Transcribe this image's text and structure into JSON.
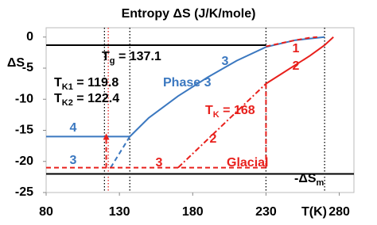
{
  "chart_data": {
    "type": "line",
    "title": "Entropy ΔS (J/K/mole)",
    "y_label": "ΔS",
    "x_label": "T(K)",
    "xlim": [
      80,
      290
    ],
    "ylim": [
      -25,
      1.5
    ],
    "xticks": [
      80,
      130,
      180,
      230,
      280
    ],
    "yticks": [
      -25,
      -20,
      -15,
      -10,
      -5,
      0
    ],
    "series": [
      {
        "name": "4",
        "color": "#3b78c0",
        "dash": "solid",
        "x": [
          80,
          137.1
        ],
        "values": [
          -16,
          -16
        ]
      },
      {
        "name": "3",
        "color": "#3b78c0",
        "dash": "dashed",
        "x": [
          124,
          137.1
        ],
        "values": [
          -21,
          -16
        ]
      },
      {
        "name": "3",
        "color": "#3b78c0",
        "dash": "solid",
        "x": [
          137.1,
          150,
          170,
          190,
          210,
          230,
          250,
          270
        ],
        "values": [
          -16,
          -13,
          -9.5,
          -6.5,
          -3.8,
          -1.6,
          -0.5,
          0
        ]
      },
      {
        "name": "3",
        "color": "#e8201c",
        "dash": "dashed",
        "x": [
          80,
          230
        ],
        "values": [
          -21,
          -21
        ]
      },
      {
        "color": "#e8201c",
        "dash": "dashed",
        "x": [
          230,
          230
        ],
        "values": [
          -21,
          -7.5
        ]
      },
      {
        "name": "2",
        "color": "#e8201c",
        "dash": "dashdot",
        "x": [
          170,
          230
        ],
        "values": [
          -21,
          -7.5
        ]
      },
      {
        "name": "2",
        "color": "#e8201c",
        "dash": "solid",
        "x": [
          230,
          240,
          250,
          260,
          270,
          276
        ],
        "values": [
          -7.5,
          -6,
          -4.5,
          -3,
          -1.3,
          0
        ]
      },
      {
        "name": "1",
        "color": "#e8201c",
        "dash": "dashed",
        "x": [
          230,
          240,
          250,
          260,
          265
        ],
        "values": [
          -1.5,
          -1,
          -0.5,
          -0.1,
          0
        ]
      },
      {
        "color": "#e8201c",
        "dash": "dashed",
        "arrow": true,
        "x": [
          121,
          121
        ],
        "values": [
          -21,
          -16
        ]
      },
      {
        "color": "#000000",
        "dash": "solid",
        "x": [
          80,
          290
        ],
        "values": [
          -22,
          -22
        ]
      },
      {
        "color": "#000000",
        "dash": "solid",
        "x": [
          80,
          230
        ],
        "values": [
          -1.3,
          -1.3
        ]
      }
    ],
    "vlines": [
      {
        "x": 119.8,
        "color": "#000000"
      },
      {
        "x": 122.4,
        "color": "#e8201c"
      },
      {
        "x": 137.1,
        "color": "#000000"
      },
      {
        "x": 230,
        "color": "#000000"
      },
      {
        "x": 270,
        "color": "#000000"
      }
    ],
    "annotations": [
      {
        "parts": [
          "T",
          "g",
          " = 137.1"
        ],
        "color": "#000000"
      },
      {
        "parts": [
          "T",
          "K1",
          " = 119.8"
        ],
        "color": "#000000"
      },
      {
        "parts": [
          "T",
          "K2",
          " = 122.4"
        ],
        "color": "#000000"
      },
      {
        "parts": [
          "Phase 3"
        ],
        "color": "#3b78c0"
      },
      {
        "parts": [
          "T",
          "K",
          " = 168"
        ],
        "color": "#e8201c"
      },
      {
        "parts": [
          "Glacial"
        ],
        "color": "#e8201c"
      },
      {
        "parts": [
          "-ΔS",
          "m"
        ],
        "color": "#000000"
      }
    ]
  }
}
